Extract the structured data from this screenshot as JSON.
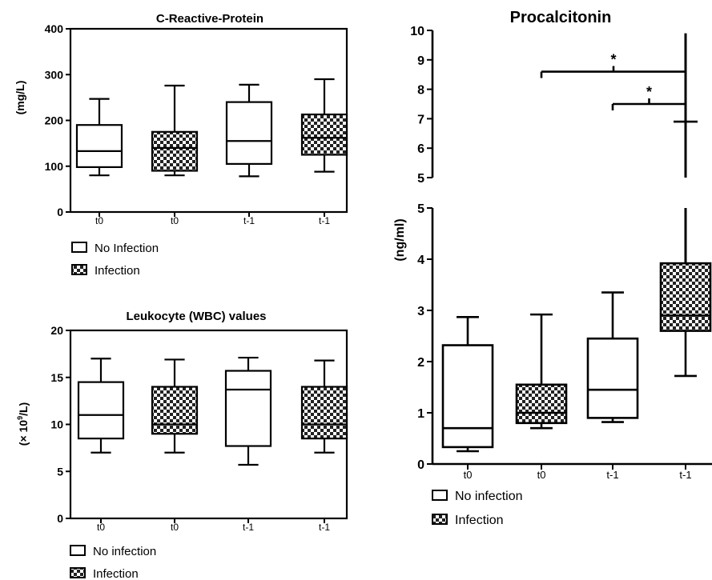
{
  "colors": {
    "ink": "#000000",
    "background": "#ffffff"
  },
  "chart_data": [
    {
      "type": "box",
      "title": "C-Reactive-Protein",
      "ylabel": "(mg/L)",
      "xlabel": "",
      "ylim": [
        0,
        400
      ],
      "yticks": [
        0,
        100,
        200,
        300,
        400
      ],
      "grid": false,
      "categories": [
        "t0",
        "t0",
        "t-1",
        "t-1"
      ],
      "boxes": [
        {
          "category": "t0",
          "group": "No Infection",
          "whisker_low": 80,
          "q1": 98,
          "median": 133,
          "q3": 190,
          "whisker_high": 247
        },
        {
          "category": "t0",
          "group": "Infection",
          "whisker_low": 80,
          "q1": 90,
          "median": 140,
          "q3": 175,
          "whisker_high": 276
        },
        {
          "category": "t-1",
          "group": "No Infection",
          "whisker_low": 78,
          "q1": 105,
          "median": 155,
          "q3": 240,
          "whisker_high": 278
        },
        {
          "category": "t-1",
          "group": "Infection",
          "whisker_low": 88,
          "q1": 125,
          "median": 162,
          "q3": 213,
          "whisker_high": 290
        }
      ],
      "legend": [
        "No Infection",
        "Infection"
      ],
      "legend_position": "below"
    },
    {
      "type": "box",
      "title": "Leukocyte (WBC) values",
      "ylabel_main": "(× 10",
      "ylabel_sup": "9",
      "ylabel_tail": "/L)",
      "xlabel": "",
      "ylim": [
        0,
        20
      ],
      "yticks": [
        0,
        5,
        10,
        15,
        20
      ],
      "grid": false,
      "categories": [
        "t0",
        "t0",
        "t-1",
        "t-1"
      ],
      "boxes": [
        {
          "category": "t0",
          "group": "No infection",
          "whisker_low": 7,
          "q1": 8.5,
          "median": 11,
          "q3": 14.5,
          "whisker_high": 17
        },
        {
          "category": "t0",
          "group": "Infection",
          "whisker_low": 7,
          "q1": 9,
          "median": 10,
          "q3": 14,
          "whisker_high": 16.9
        },
        {
          "category": "t-1",
          "group": "No infection",
          "whisker_low": 5.7,
          "q1": 7.7,
          "median": 13.7,
          "q3": 15.7,
          "whisker_high": 17.1
        },
        {
          "category": "t-1",
          "group": "Infection",
          "whisker_low": 7,
          "q1": 8.5,
          "median": 10,
          "q3": 14,
          "whisker_high": 16.8
        }
      ],
      "legend": [
        "No infection",
        "Infection"
      ],
      "legend_position": "below"
    },
    {
      "type": "box",
      "title": "Procalcitonin",
      "ylabel": "(ng/ml)",
      "xlabel": "",
      "broken_axis": true,
      "ylim_lower": [
        0,
        5
      ],
      "ylim_upper": [
        5,
        10
      ],
      "yticks_lower": [
        0,
        1,
        2,
        3,
        4,
        5
      ],
      "yticks_upper": [
        5,
        6,
        7,
        8,
        9,
        10
      ],
      "grid": false,
      "categories": [
        "t0",
        "t0",
        "t-1",
        "t-1"
      ],
      "boxes": [
        {
          "category": "t0",
          "group": "No infection",
          "whisker_low": 0.25,
          "q1": 0.33,
          "median": 0.7,
          "q3": 2.32,
          "whisker_high": 2.87
        },
        {
          "category": "t0",
          "group": "Infection",
          "whisker_low": 0.7,
          "q1": 0.8,
          "median": 1.0,
          "q3": 1.55,
          "whisker_high": 2.92
        },
        {
          "category": "t-1",
          "group": "No infection",
          "whisker_low": 0.82,
          "q1": 0.9,
          "median": 1.45,
          "q3": 2.45,
          "whisker_high": 3.35
        },
        {
          "category": "t-1",
          "group": "Infection",
          "whisker_low": 1.72,
          "q1": 2.6,
          "median": 2.9,
          "q3": 3.92,
          "whisker_high": 9.9,
          "marker": 6.9
        }
      ],
      "significance": [
        {
          "label": "*",
          "from_category_index": 1,
          "to_category_index": 3,
          "y": 8.6
        },
        {
          "label": "*",
          "from_category_index": 2,
          "to_category_index": 3,
          "y": 7.5
        }
      ],
      "legend": [
        "No infection",
        "Infection"
      ],
      "legend_position": "below"
    }
  ]
}
